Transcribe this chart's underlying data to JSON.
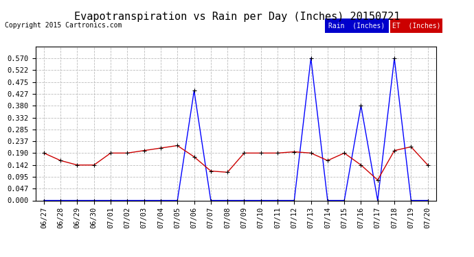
{
  "title": "Evapotranspiration vs Rain per Day (Inches) 20150721",
  "copyright": "Copyright 2015 Cartronics.com",
  "x_labels": [
    "06/27",
    "06/28",
    "06/29",
    "06/30",
    "07/01",
    "07/02",
    "07/03",
    "07/04",
    "07/05",
    "07/06",
    "07/07",
    "07/08",
    "07/09",
    "07/10",
    "07/11",
    "07/12",
    "07/13",
    "07/14",
    "07/15",
    "07/16",
    "07/17",
    "07/18",
    "07/19",
    "07/20"
  ],
  "rain_values": [
    0.0,
    0.0,
    0.0,
    0.0,
    0.0,
    0.0,
    0.0,
    0.0,
    0.0,
    0.44,
    0.0,
    0.0,
    0.0,
    0.0,
    0.0,
    0.0,
    0.57,
    0.0,
    0.0,
    0.38,
    0.0,
    0.57,
    0.0,
    0.0
  ],
  "et_values": [
    0.19,
    0.16,
    0.142,
    0.142,
    0.19,
    0.19,
    0.2,
    0.21,
    0.22,
    0.175,
    0.118,
    0.113,
    0.19,
    0.19,
    0.19,
    0.195,
    0.19,
    0.16,
    0.19,
    0.142,
    0.082,
    0.2,
    0.215,
    0.142
  ],
  "rain_color": "#0000ff",
  "et_color": "#cc0000",
  "marker_color": "#000000",
  "background_color": "#ffffff",
  "grid_color": "#bbbbbb",
  "ylim": [
    0.0,
    0.618
  ],
  "yticks": [
    0.0,
    0.047,
    0.095,
    0.142,
    0.19,
    0.237,
    0.285,
    0.332,
    0.38,
    0.427,
    0.475,
    0.522,
    0.57
  ],
  "legend_rain_bg": "#0000cc",
  "legend_et_bg": "#cc0000",
  "legend_rain_label": "Rain  (Inches)",
  "legend_et_label": "ET  (Inches)",
  "title_fontsize": 11,
  "copyright_fontsize": 7,
  "tick_fontsize": 7.5,
  "border_color": "#000000"
}
